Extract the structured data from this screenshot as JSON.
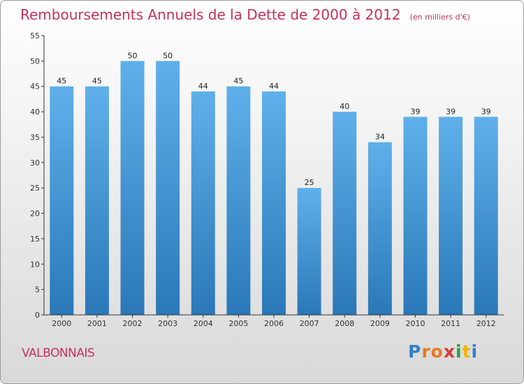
{
  "title": "Remboursements Annuels de la Dette de 2000 à 2012",
  "unit": "(en milliers d'€)",
  "commune": "VALBONNAIS",
  "logo": {
    "letters": [
      "P",
      "r",
      "o",
      "x",
      "i",
      "t",
      "i"
    ]
  },
  "colors": {
    "bar_top": "#5fb0ea",
    "bar_bottom": "#2a78b8",
    "title": "#c8305f",
    "axis": "#333333"
  },
  "chart_data": {
    "type": "bar",
    "title": "Remboursements Annuels de la Dette de 2000 à 2012",
    "ylabel": "(en milliers d'€)",
    "xlabel": "",
    "categories": [
      "2000",
      "2001",
      "2002",
      "2003",
      "2004",
      "2005",
      "2006",
      "2007",
      "2008",
      "2009",
      "2010",
      "2011",
      "2012"
    ],
    "values": [
      45,
      45,
      50,
      50,
      44,
      45,
      44,
      25,
      40,
      34,
      39,
      39,
      39
    ],
    "ylim": [
      0,
      55
    ],
    "yticks": [
      0,
      5,
      10,
      15,
      20,
      25,
      30,
      35,
      40,
      45,
      50,
      55
    ],
    "grid": false,
    "data_labels": true
  }
}
